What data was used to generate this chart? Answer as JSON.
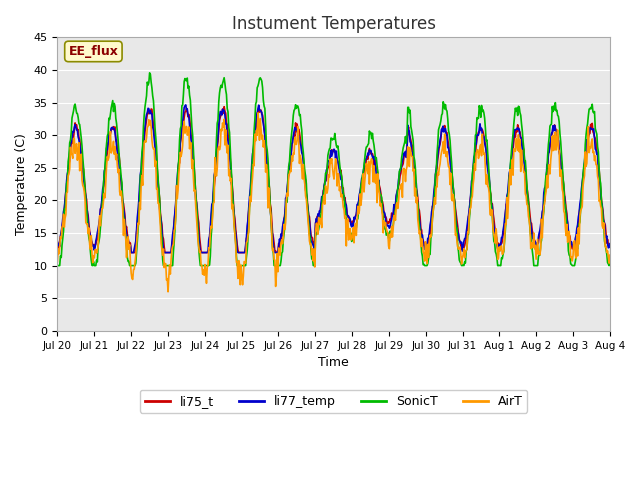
{
  "title": "Instument Temperatures",
  "xlabel": "Time",
  "ylabel": "Temperature (C)",
  "ylim": [
    0,
    45
  ],
  "yticks": [
    0,
    5,
    10,
    15,
    20,
    25,
    30,
    35,
    40,
    45
  ],
  "x_labels": [
    "Jul 20",
    "Jul 21",
    "Jul 22",
    "Jul 23",
    "Jul 24",
    "Jul 25",
    "Jul 26",
    "Jul 27",
    "Jul 28",
    "Jul 29",
    "Jul 30",
    "Jul 31",
    "Aug 1",
    "Aug 2",
    "Aug 3",
    "Aug 4"
  ],
  "annotation_text": "EE_flux",
  "annotation_color": "#8B0000",
  "annotation_bg": "#FFFACD",
  "annotation_border": "#8B8B00",
  "colors": {
    "li75_t": "#CC0000",
    "li77_temp": "#0000CC",
    "SonicT": "#00BB00",
    "AirT": "#FF9900"
  },
  "legend_labels": [
    "li75_t",
    "li77_temp",
    "SonicT",
    "AirT"
  ],
  "bg_plot": "#E8E8E8",
  "bg_fig": "#FFFFFF",
  "grid_color": "#FFFFFF",
  "num_days": 15,
  "pts_per_day": 48
}
